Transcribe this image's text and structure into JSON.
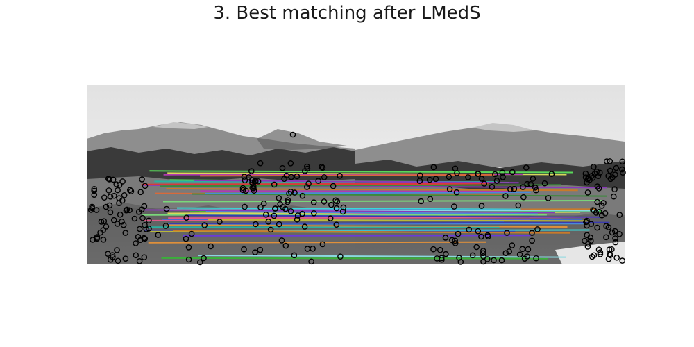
{
  "figure": {
    "title": "3. Best matching after LMedS"
  },
  "scene": {
    "description_colors": {
      "sky_top": "#e6e6e6",
      "sky_bottom": "#f2f2f2",
      "mountain": "#8a8a8a",
      "mountain_snow": "#bcbcbc",
      "vegetation": "#3c3c3c",
      "ground": "#9a9a9a",
      "keypoint_stroke": "#000000"
    }
  },
  "match_line_colors": [
    "#e05a8a",
    "#c87a2a",
    "#4a8ad8",
    "#3a3ab0",
    "#b8b83a",
    "#8a3ab8",
    "#5ad85a",
    "#3ad8d8",
    "#d83a3a",
    "#3a6ad8",
    "#7ad87a",
    "#b03ab0",
    "#e0903a",
    "#2ab0a0",
    "#d8d85a",
    "#3ab03a",
    "#6a3ad8",
    "#d86a3a",
    "#3a8a3a",
    "#8ad8e0"
  ]
}
